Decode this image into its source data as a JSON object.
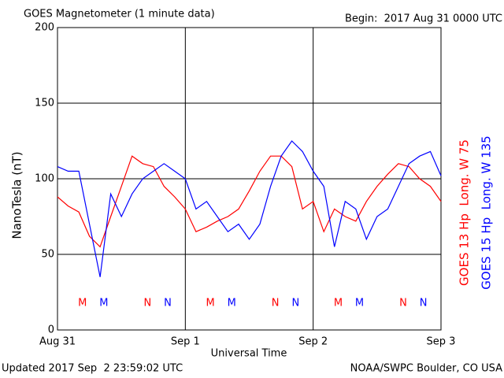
{
  "chart_data": {
    "type": "line",
    "title": "GOES Magnetometer (1 minute data)",
    "subtitle": "Begin:  2017 Aug 31 0000 UTC",
    "ylabel": "NanoTesla (nT)",
    "xlabel": "Universal Time",
    "footer_left": "Updated 2017 Sep  2 23:59:02 UTC",
    "footer_right": "NOAA/SWPC Boulder, CO USA",
    "x": [
      0,
      2,
      4,
      6,
      8,
      10,
      12,
      14,
      16,
      18,
      20,
      22,
      24,
      26,
      28,
      30,
      32,
      34,
      36,
      38,
      40,
      42,
      44,
      46,
      48,
      50,
      52,
      54,
      56,
      58,
      60,
      62,
      64,
      66,
      68,
      70,
      72
    ],
    "series": [
      {
        "name": "GOES 13 Hp  Long. W 75",
        "color": "#ff0000",
        "values": [
          88,
          82,
          78,
          62,
          55,
          75,
          95,
          115,
          110,
          108,
          95,
          88,
          80,
          65,
          68,
          72,
          75,
          80,
          92,
          105,
          115,
          115,
          108,
          80,
          85,
          65,
          80,
          75,
          72,
          85,
          95,
          103,
          110,
          108,
          100,
          95,
          85
        ]
      },
      {
        "name": "GOES 15 Hp  Long. W 135",
        "color": "#0000ff",
        "values": [
          108,
          105,
          105,
          70,
          35,
          90,
          75,
          90,
          100,
          105,
          110,
          105,
          100,
          80,
          85,
          75,
          65,
          70,
          60,
          70,
          95,
          115,
          125,
          118,
          105,
          95,
          55,
          85,
          80,
          60,
          75,
          80,
          95,
          110,
          115,
          118,
          102
        ]
      }
    ],
    "markers": [
      {
        "label": "M",
        "x": 4.7,
        "series": 0
      },
      {
        "label": "M",
        "x": 8.7,
        "series": 1
      },
      {
        "label": "N",
        "x": 16.9,
        "series": 0
      },
      {
        "label": "N",
        "x": 20.7,
        "series": 1
      },
      {
        "label": "M",
        "x": 28.7,
        "series": 0
      },
      {
        "label": "M",
        "x": 32.7,
        "series": 1
      },
      {
        "label": "N",
        "x": 40.9,
        "series": 0
      },
      {
        "label": "N",
        "x": 44.7,
        "series": 1
      },
      {
        "label": "M",
        "x": 52.7,
        "series": 0
      },
      {
        "label": "M",
        "x": 56.7,
        "series": 1
      },
      {
        "label": "N",
        "x": 64.9,
        "series": 0
      },
      {
        "label": "N",
        "x": 68.7,
        "series": 1
      }
    ],
    "xlim": [
      0,
      72
    ],
    "xticks": [
      {
        "value": 0,
        "label": "Aug 31"
      },
      {
        "value": 24,
        "label": "Sep 1"
      },
      {
        "value": 48,
        "label": "Sep 2"
      },
      {
        "value": 72,
        "label": "Sep 3"
      }
    ],
    "ylim": [
      0,
      200
    ],
    "yticks": [
      0,
      50,
      100,
      150,
      200
    ],
    "grid": true
  }
}
